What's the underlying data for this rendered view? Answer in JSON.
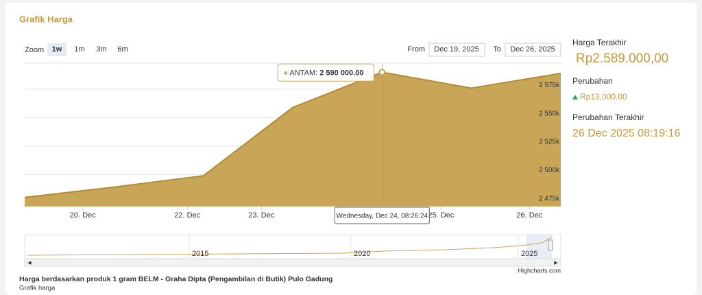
{
  "header": {
    "title": "Grafik Harga"
  },
  "zoom": {
    "label": "Zoom",
    "buttons": [
      "1w",
      "1m",
      "3m",
      "6m"
    ]
  },
  "range": {
    "from_label": "From",
    "from": "Dec 19, 2025",
    "to_label": "To",
    "to": "Dec 26, 2025"
  },
  "chart_data": {
    "type": "area",
    "x": [
      0,
      1,
      2,
      3,
      4,
      5,
      6
    ],
    "xlim": [
      0,
      6
    ],
    "xticks": [
      {
        "value": 0.65,
        "label": "20. Dec"
      },
      {
        "value": 1.82,
        "label": "22. Dec"
      },
      {
        "value": 2.65,
        "label": "23. Dec"
      },
      {
        "value": 4.66,
        "label": "25. Dec"
      },
      {
        "value": 5.65,
        "label": "26. Dec"
      }
    ],
    "ylim": [
      2472000,
      2598000
    ],
    "yticks": [
      {
        "value": 2475000,
        "label": "2 475k"
      },
      {
        "value": 2500000,
        "label": "2 500k"
      },
      {
        "value": 2525000,
        "label": "2 525k"
      },
      {
        "value": 2550000,
        "label": "2 550k"
      },
      {
        "value": 2575000,
        "label": "2 575k"
      }
    ],
    "grid": true,
    "series": [
      {
        "name": "ANTAM",
        "color": "#c9a657",
        "values": [
          2480000,
          2489000,
          2499000,
          2559000,
          2590000,
          2576000,
          2589000
        ],
        "value_labels": [
          null,
          null,
          null,
          null,
          "2 590 000.00",
          null,
          null
        ]
      }
    ],
    "tooltip_x": "Wednesday, Dec 24, 08:26:24",
    "navigator_labels": [
      "2015",
      "2020",
      "2025"
    ],
    "credits": "Highcharts.com"
  },
  "caption": {
    "title": "Harga berdasarkan produk 1 gram BELM - Graha Dipta (Pengambilan di Butik) Pulo Gadung",
    "subtitle": "Grafik harga"
  },
  "summary": {
    "last_price_label": "Harga Terakhir",
    "last_price": "Rp2.589.000,00",
    "change_label": "Perubahan",
    "change": "Rp13,000.00",
    "last_change_label": "Perubahan Terakhir",
    "last_change": "26 Dec 2025 08:19:16"
  }
}
